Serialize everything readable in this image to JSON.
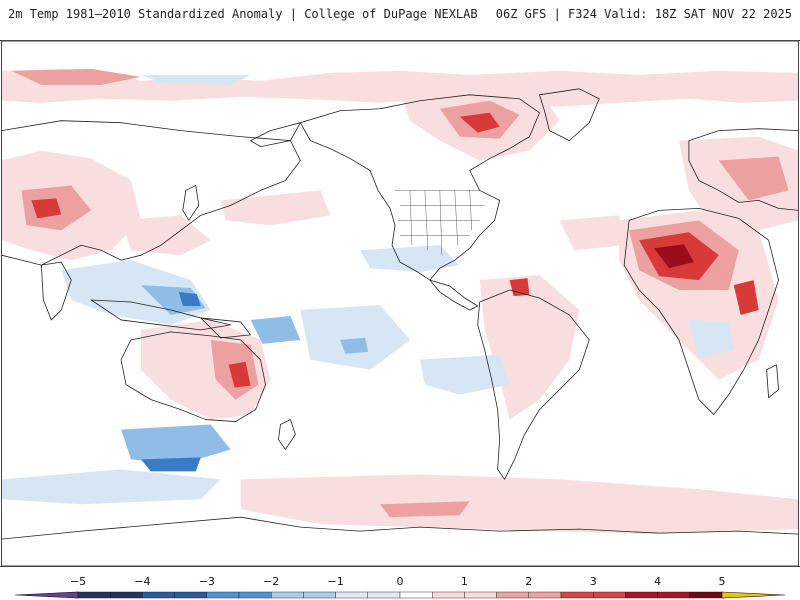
{
  "header": {
    "left_title": "2m Temp 1981–2010 Standardized Anomaly | College of DuPage NEXLAB",
    "right_title": "06Z GFS | F324 Valid: 18Z SAT NOV 22 2025"
  },
  "colorbar": {
    "ticks": [
      "−5",
      "−4",
      "−3",
      "−2",
      "−1",
      "0",
      "1",
      "2",
      "3",
      "4",
      "5"
    ],
    "colors": [
      "#6a3d9a",
      "#24345e",
      "#2b5c9c",
      "#4f95d4",
      "#a9cdec",
      "#dfeaf6",
      "#ffffff",
      "#f7dada",
      "#eaa2a2",
      "#d64545",
      "#a81626",
      "#6f0a12",
      "#f3c200"
    ]
  },
  "palette": {
    "warm_light": "#f8dede",
    "warm_mid": "#eda0a0",
    "warm_strong": "#d83a3a",
    "warm_deep": "#9b0d1c",
    "cool_light": "#d6e6f5",
    "cool_mid": "#8fbde6",
    "cool_strong": "#3a7bc8",
    "coast": "#222222"
  }
}
